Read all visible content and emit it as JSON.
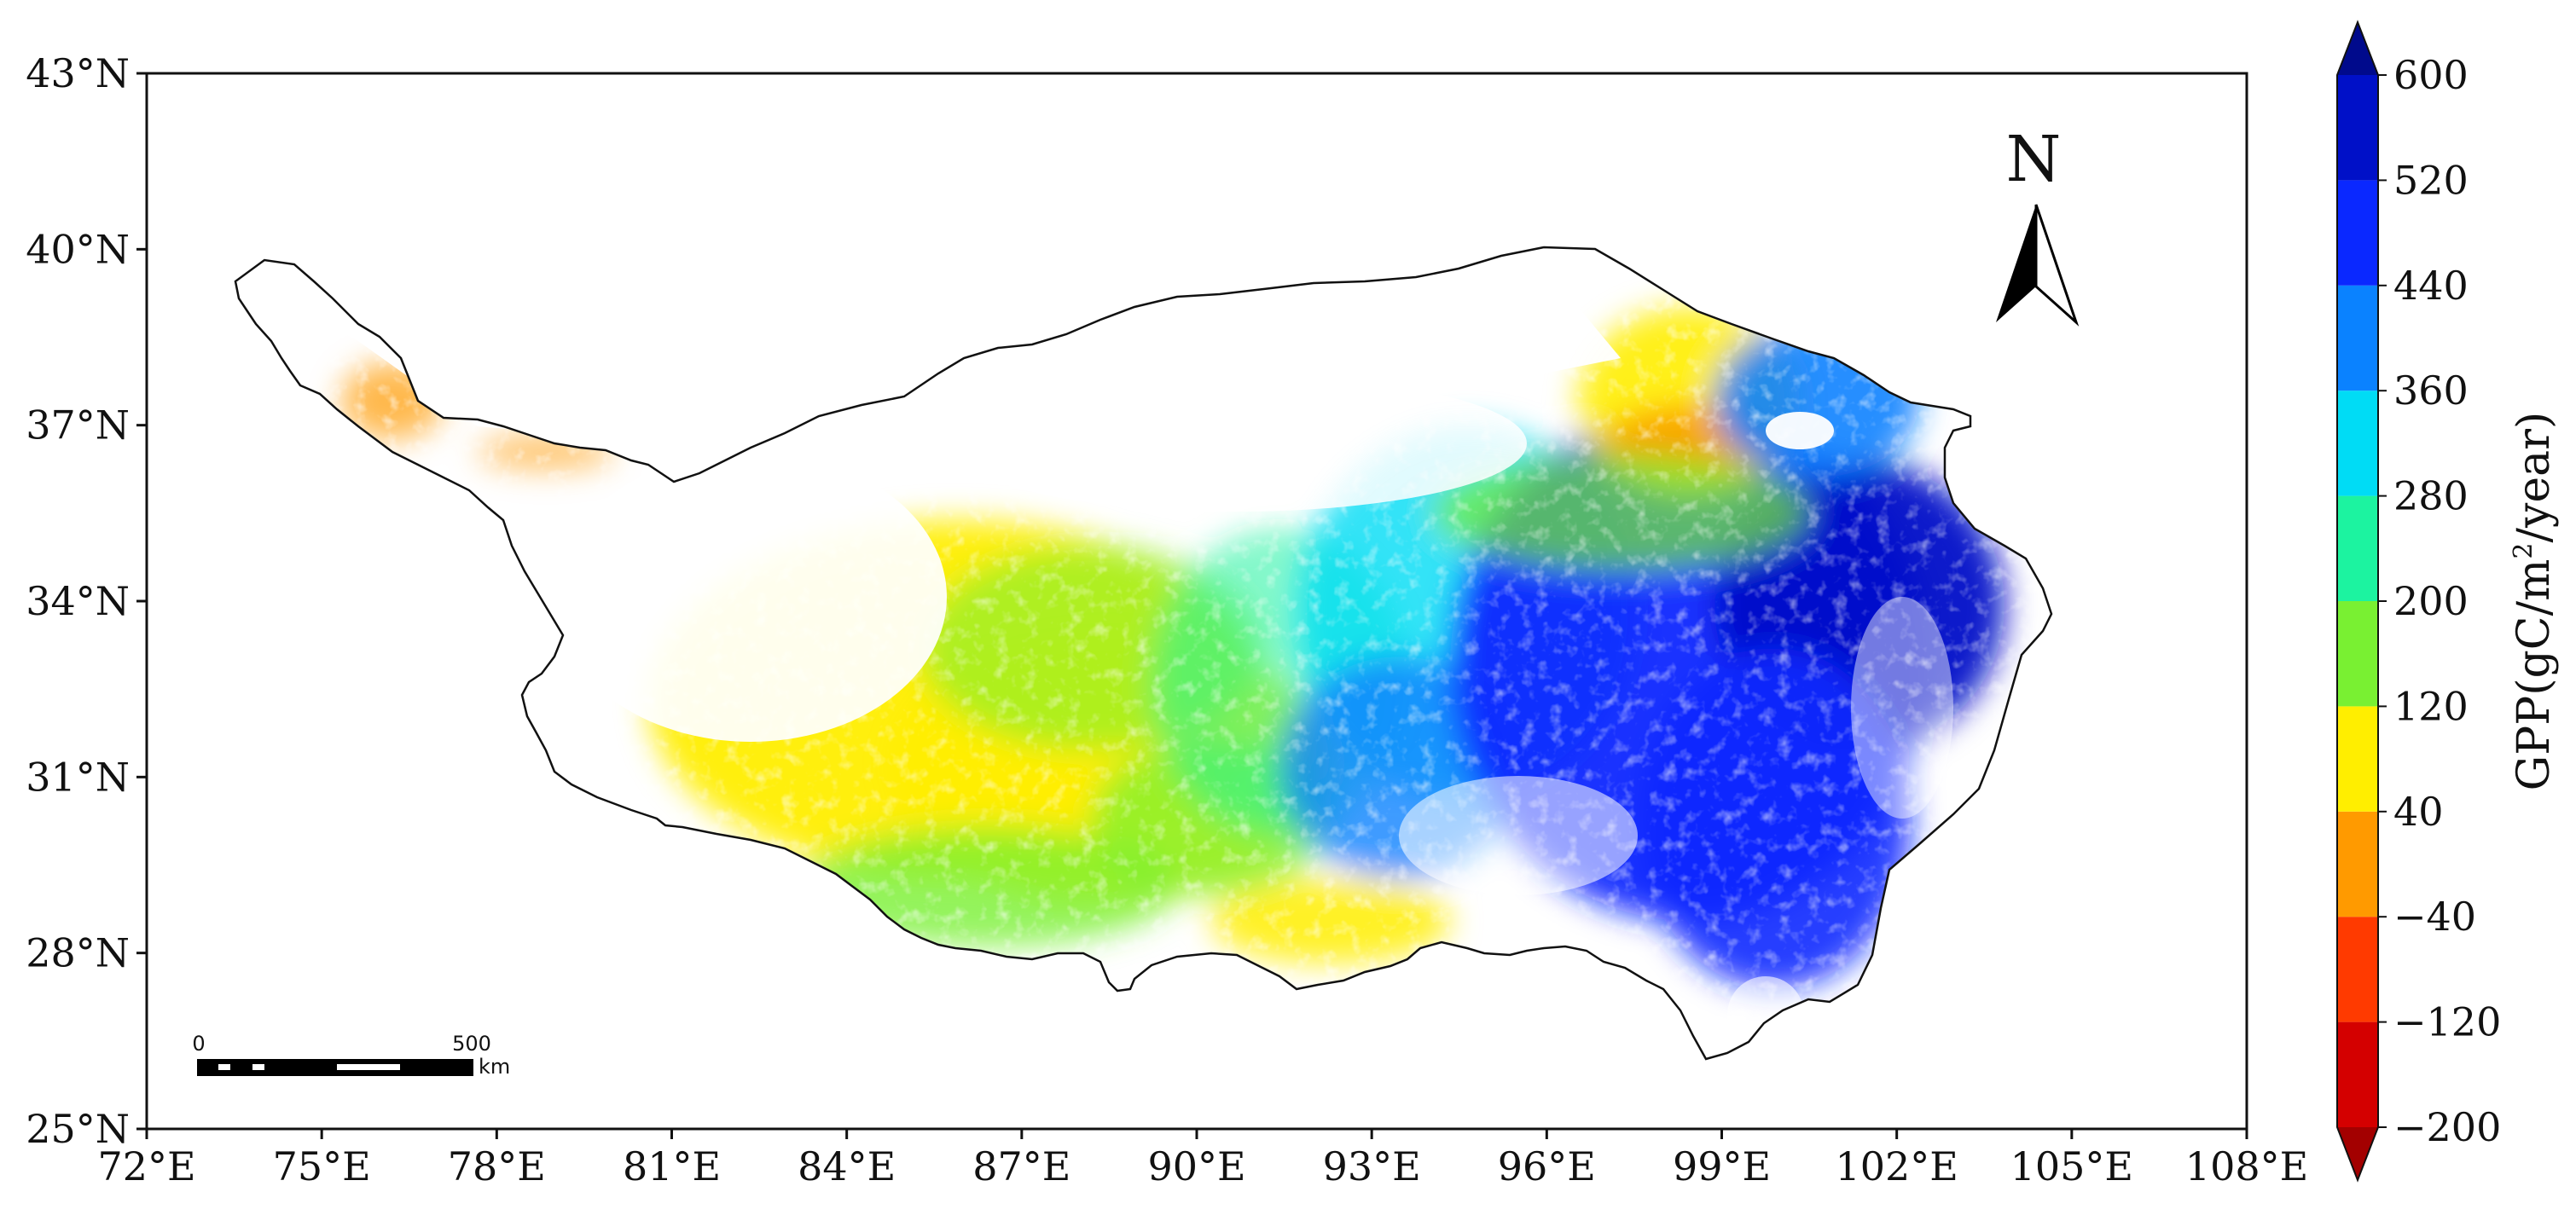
{
  "map": {
    "lon_ticks": [
      "72°E",
      "75°E",
      "78°E",
      "81°E",
      "84°E",
      "87°E",
      "90°E",
      "93°E",
      "96°E",
      "99°E",
      "102°E",
      "105°E",
      "108°E"
    ],
    "lat_ticks": [
      "43°N",
      "40°N",
      "37°N",
      "34°N",
      "31°N",
      "28°N",
      "25°N"
    ],
    "lon_range": [
      72,
      108
    ],
    "lat_range": [
      25,
      43
    ],
    "north_arrow_label": "N",
    "scale_bar": {
      "start_label": "0",
      "end_label": "500",
      "unit_label": "km"
    }
  },
  "colorbar": {
    "label_main": "GPP(gC/m",
    "label_sup": "2",
    "label_tail": "/year)",
    "tick_labels": [
      "600",
      "520",
      "440",
      "360",
      "280",
      "200",
      "120",
      "40",
      "−40",
      "−120",
      "−200"
    ],
    "bins": [
      {
        "from": -200,
        "to": -120,
        "color": "#d40000"
      },
      {
        "from": -120,
        "to": -40,
        "color": "#ff3a00"
      },
      {
        "from": -40,
        "to": 40,
        "color": "#ff9a00"
      },
      {
        "from": 40,
        "to": 120,
        "color": "#ffee00"
      },
      {
        "from": 120,
        "to": 200,
        "color": "#79f032"
      },
      {
        "from": 200,
        "to": 280,
        "color": "#1cf3a0"
      },
      {
        "from": 280,
        "to": 360,
        "color": "#00dcf5"
      },
      {
        "from": 360,
        "to": 440,
        "color": "#0a82ff"
      },
      {
        "from": 440,
        "to": 520,
        "color": "#0a28ff"
      },
      {
        "from": 520,
        "to": 600,
        "color": "#0010c8"
      }
    ],
    "extend_low_color": "#a30000",
    "extend_high_color": "#000a8c"
  }
}
